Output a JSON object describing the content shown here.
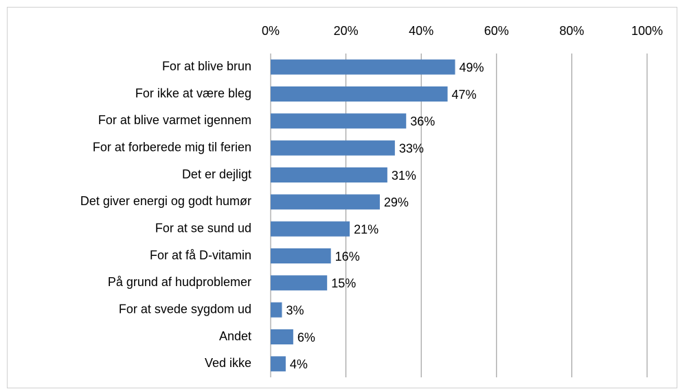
{
  "chart_data": {
    "type": "barh",
    "categories": [
      "For at blive brun",
      "For ikke at være bleg",
      "For at blive varmet igennem",
      "For at forberede mig til ferien",
      "Det er dejligt",
      "Det giver energi og godt humør",
      "For at se sund ud",
      "For at få D-vitamin",
      "På grund af hudproblemer",
      "For at svede sygdom ud",
      "Andet",
      "Ved ikke"
    ],
    "values": [
      49,
      47,
      36,
      33,
      31,
      29,
      21,
      16,
      15,
      3,
      6,
      4
    ],
    "value_labels": [
      "49%",
      "47%",
      "36%",
      "33%",
      "31%",
      "29%",
      "21%",
      "16%",
      "15%",
      "3%",
      "6%",
      "4%"
    ],
    "color": "#4f81bd",
    "xlim": [
      0,
      100
    ],
    "xticks": [
      {
        "value": 0,
        "label": "0%"
      },
      {
        "value": 20,
        "label": "20%"
      },
      {
        "value": 40,
        "label": "40%"
      },
      {
        "value": 60,
        "label": "60%"
      },
      {
        "value": 80,
        "label": "80%"
      },
      {
        "value": 100,
        "label": "100%"
      }
    ],
    "grid": true
  }
}
